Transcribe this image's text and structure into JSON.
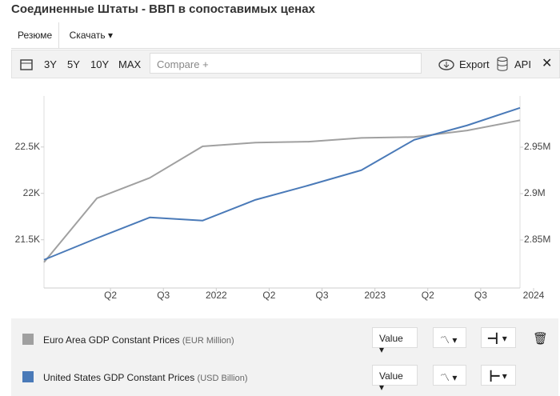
{
  "header": {
    "title": "Соединенные Штаты - ВВП в сопоставимых ценах"
  },
  "tabs": [
    "Резюме",
    "Скачать"
  ],
  "toolbar": {
    "ranges": [
      "3Y",
      "5Y",
      "10Y",
      "MAX"
    ],
    "compare": "Compare +",
    "export": "Export",
    "api": "API"
  },
  "chart_data": {
    "type": "line",
    "categories": [
      null,
      "Q2",
      "Q3",
      "2022",
      "Q2",
      "Q3",
      "2023",
      "Q2",
      "Q3",
      "2024"
    ],
    "ylim": [
      20980,
      23050
    ],
    "yticks": [
      {
        "value": 21500,
        "label": "21.5K"
      },
      {
        "value": 22000,
        "label": "22K"
      },
      {
        "value": 22500,
        "label": "22.5K"
      }
    ],
    "y2lim": [
      2798300,
      3005200
    ],
    "y2ticks": [
      {
        "value": 2850000,
        "label": "2.85M"
      },
      {
        "value": 2900000,
        "label": "2.9M"
      },
      {
        "value": 2950000,
        "label": "2.95M"
      }
    ],
    "series": [
      {
        "name": "Euro Area GDP Constant Prices",
        "unit": "(EUR Million)",
        "color": "#a0a0a0",
        "axis": "y2",
        "control": "Value",
        "values": [
          2826000,
          2895000,
          2917000,
          2951000,
          2955000,
          2956000,
          2960000,
          2961000,
          2968000,
          2979000
        ]
      },
      {
        "name": "United States GDP Constant Prices",
        "unit": "(USD Billion)",
        "color": "#4a7ab8",
        "axis": "y",
        "control": "Value",
        "values": [
          21284,
          21517,
          21741,
          21707,
          21931,
          22086,
          22250,
          22578,
          22733,
          22922
        ]
      }
    ]
  }
}
